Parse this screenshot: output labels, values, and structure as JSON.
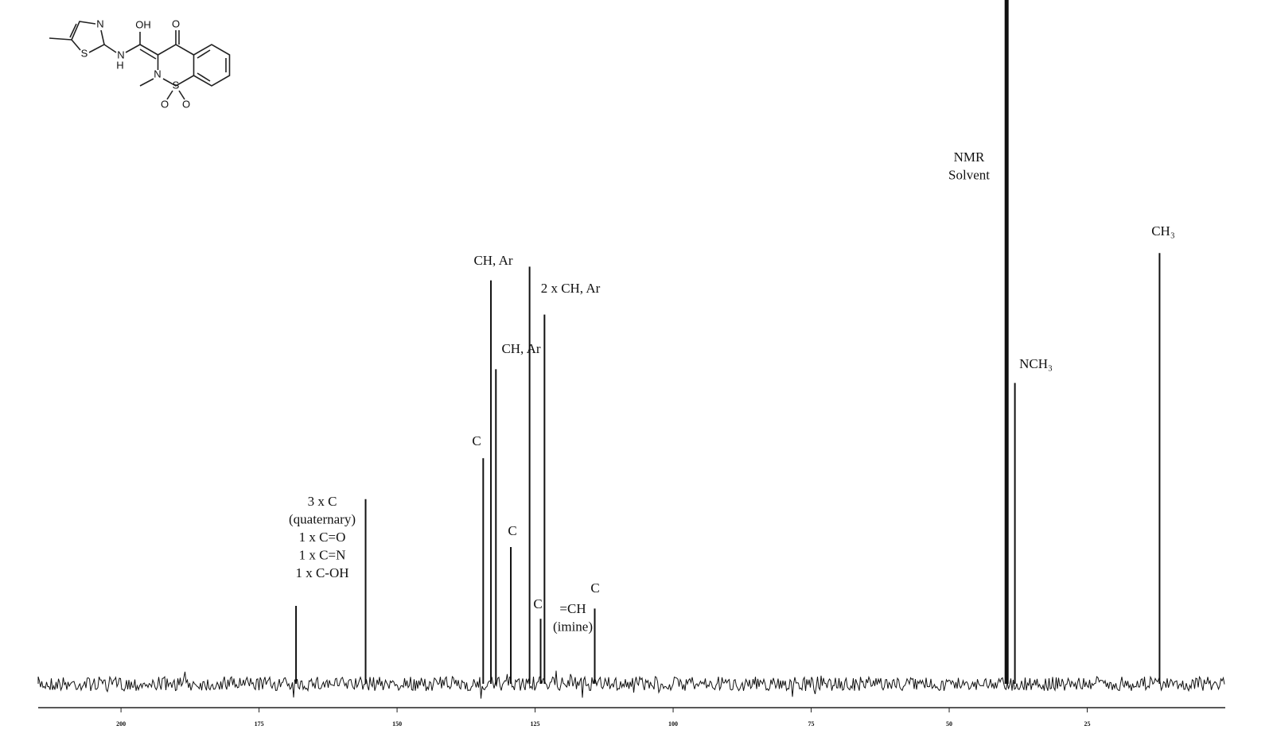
{
  "chart_data": {
    "type": "spectrum",
    "structure_atoms": [
      "N",
      "S",
      "OH",
      "O",
      "N",
      "H",
      "N",
      "S",
      "O",
      "O"
    ],
    "xlim": [
      215,
      0
    ],
    "xticks": [
      200,
      175,
      150,
      125,
      100,
      75,
      50,
      25
    ],
    "ylim": [
      0,
      100
    ],
    "peaks": {
      "x": [
        168.3,
        155.7,
        134.4,
        133.0,
        132.1,
        129.4,
        126.0,
        124.0,
        123.3,
        114.2,
        39.6,
        38.1,
        11.9
      ],
      "values": [
        11.4,
        27,
        33,
        59,
        46,
        20,
        61,
        9.5,
        54,
        11,
        100,
        44,
        63
      ]
    },
    "color": "#111111",
    "annotations": [
      [
        "3 x C",
        "(quaternary)",
        "1 x C=O",
        "1 x C=N",
        "1 x C-OH"
      ],
      [
        "C"
      ],
      [
        "CH, Ar"
      ],
      [
        "CH, Ar"
      ],
      [
        "C"
      ],
      [
        "2 x CH, Ar"
      ],
      [
        "C"
      ],
      [
        "=CH",
        "(imine)"
      ],
      [
        "C"
      ],
      [
        "NMR",
        "Solvent"
      ],
      [
        "NCH₃"
      ],
      [
        "CH₃"
      ]
    ]
  }
}
